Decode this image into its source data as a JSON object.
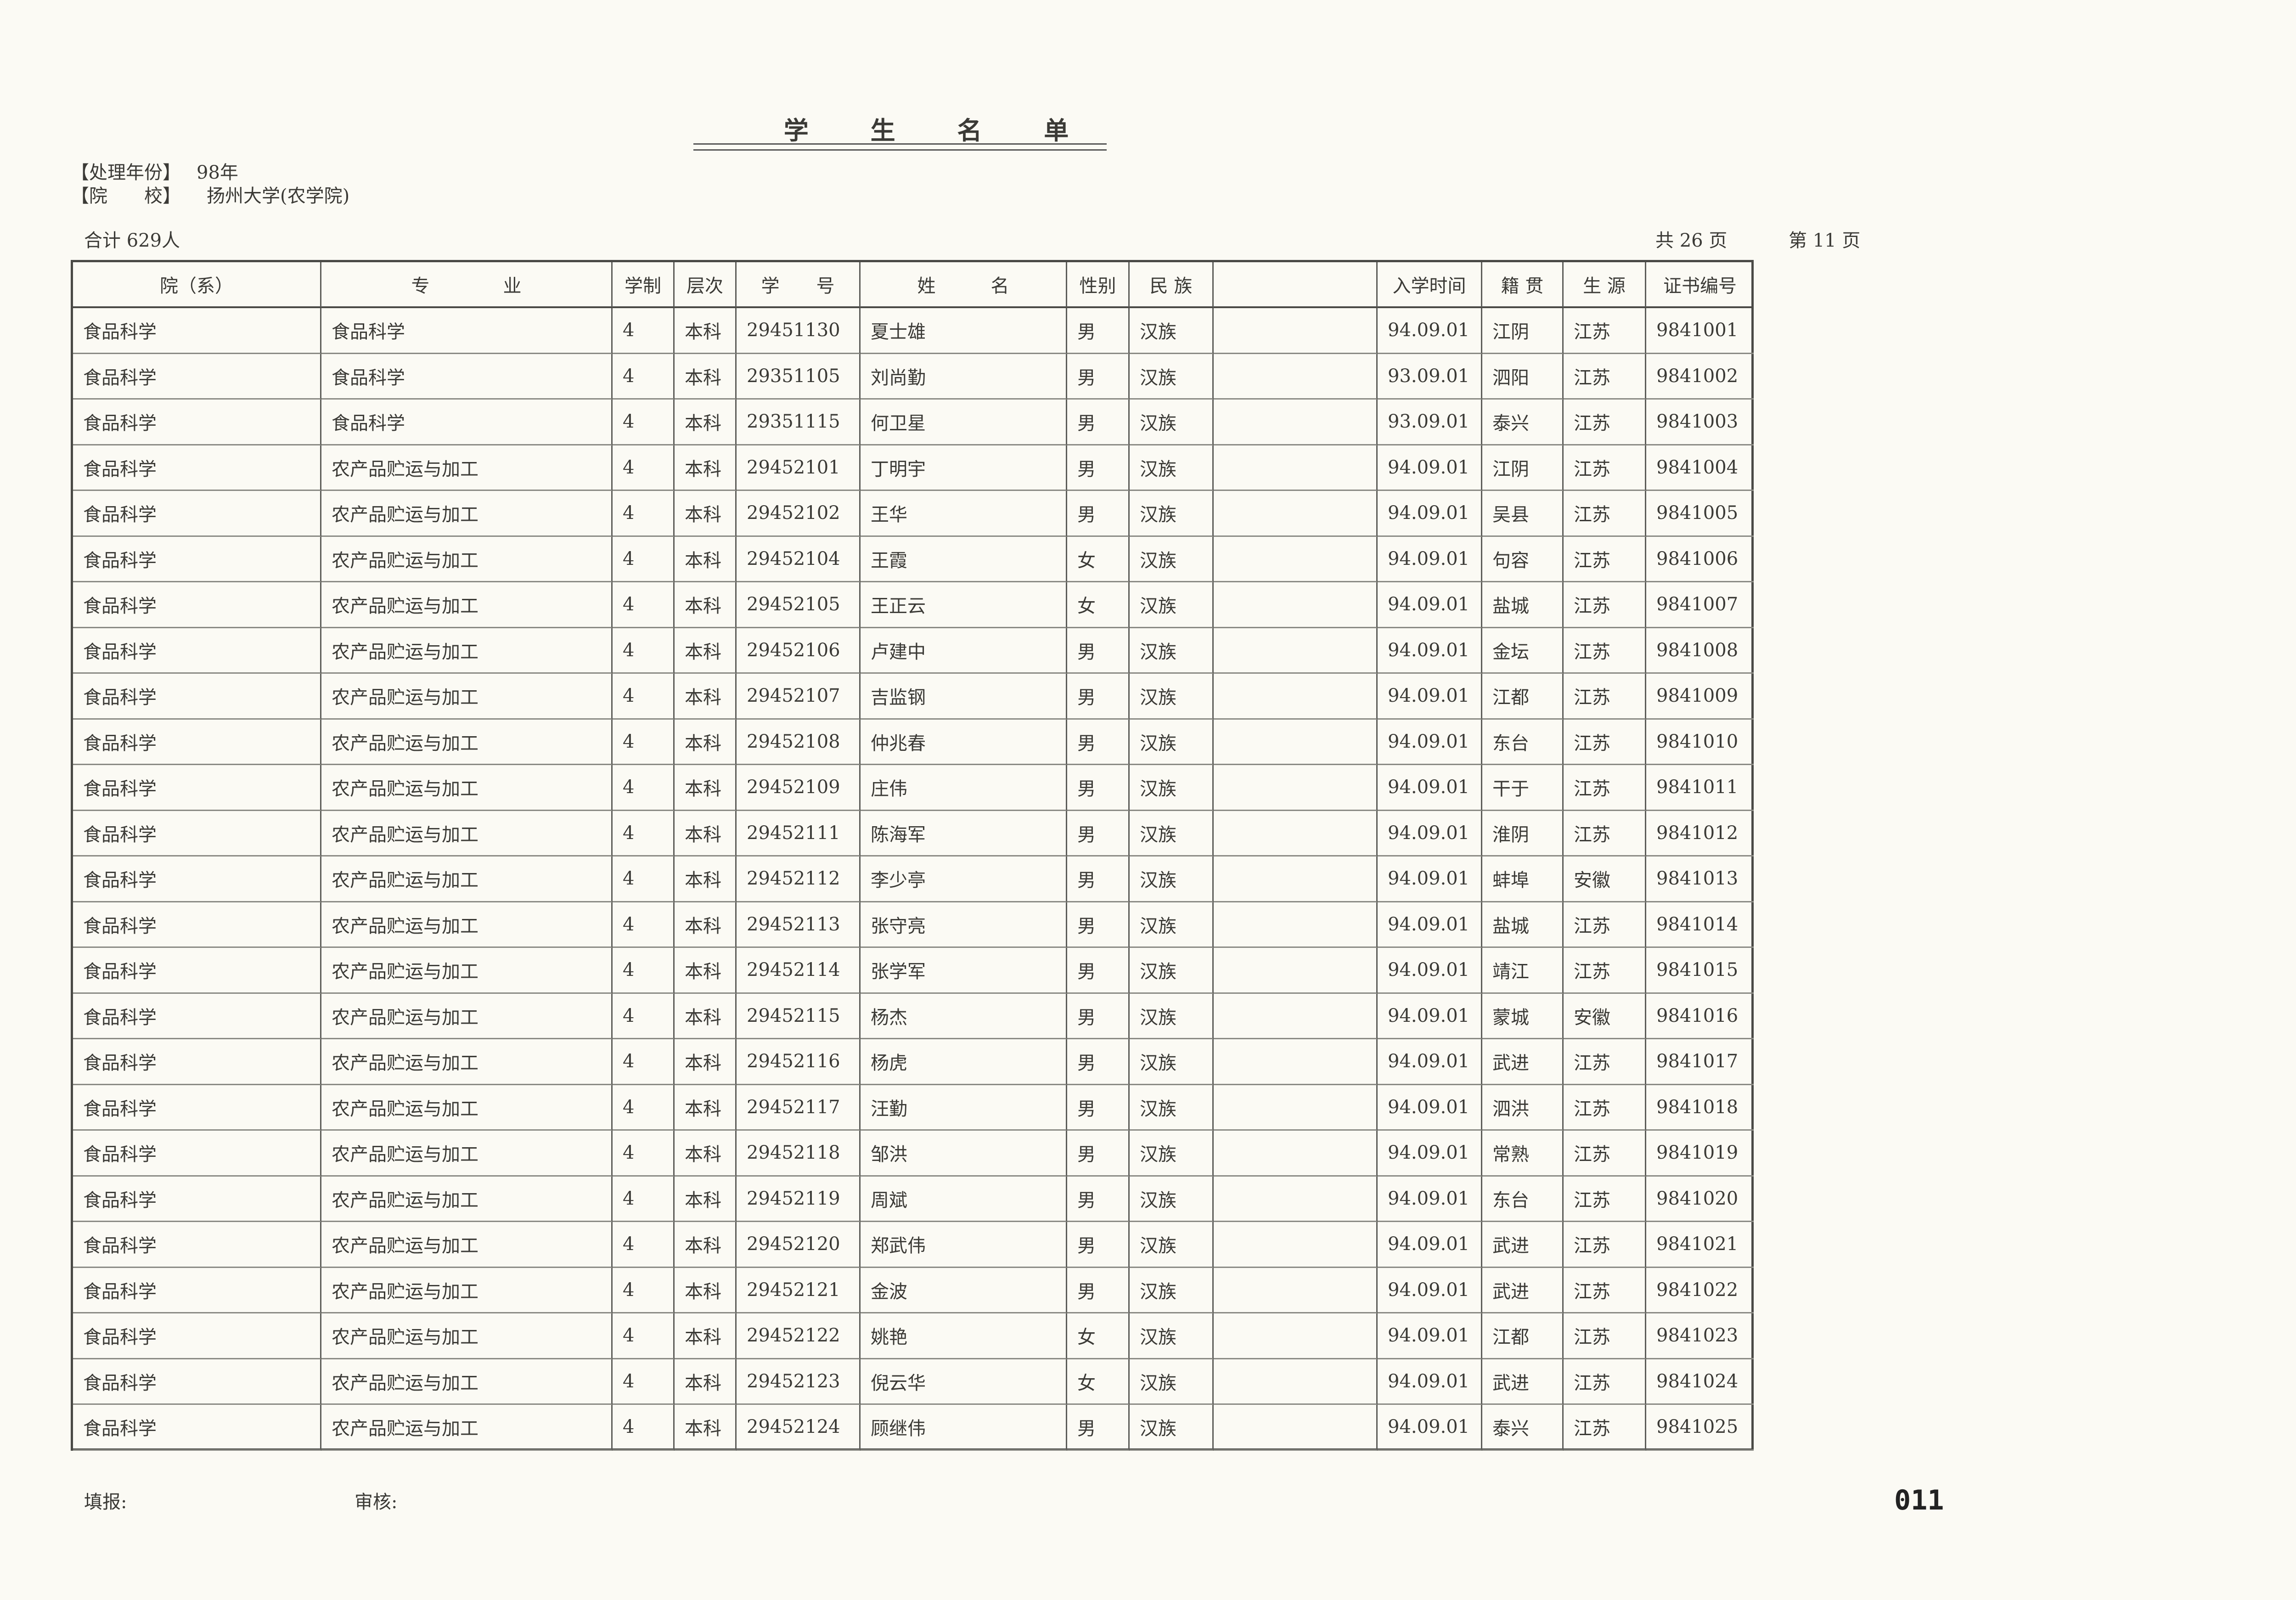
{
  "header": {
    "title": "学 生 名 单",
    "fields": [
      {
        "label": "【处理年份】",
        "value": "98年"
      },
      {
        "label": "【院　　校】",
        "value": "扬州大学(农学院)"
      }
    ],
    "total": "合计 629人",
    "pages_total": "共 26 页",
    "page_current": "第 11 页"
  },
  "table": {
    "columns": [
      "院（系）",
      "专　　　　业",
      "学制",
      "层次",
      "学　　号",
      "姓　　　名",
      "性别",
      "民 族",
      "入学时间",
      "籍 贯",
      "生 源",
      "证书编号"
    ],
    "rows": [
      [
        "食品科学",
        "食品科学",
        "4",
        "本科",
        "29451130",
        "夏士雄",
        "男",
        "汉族",
        "94.09.01",
        "江阴",
        "江苏",
        "9841001"
      ],
      [
        "食品科学",
        "食品科学",
        "4",
        "本科",
        "29351105",
        "刘尚勤",
        "男",
        "汉族",
        "93.09.01",
        "泗阳",
        "江苏",
        "9841002"
      ],
      [
        "食品科学",
        "食品科学",
        "4",
        "本科",
        "29351115",
        "何卫星",
        "男",
        "汉族",
        "93.09.01",
        "泰兴",
        "江苏",
        "9841003"
      ],
      [
        "食品科学",
        "农产品贮运与加工",
        "4",
        "本科",
        "29452101",
        "丁明宇",
        "男",
        "汉族",
        "94.09.01",
        "江阴",
        "江苏",
        "9841004"
      ],
      [
        "食品科学",
        "农产品贮运与加工",
        "4",
        "本科",
        "29452102",
        "王华",
        "男",
        "汉族",
        "94.09.01",
        "吴县",
        "江苏",
        "9841005"
      ],
      [
        "食品科学",
        "农产品贮运与加工",
        "4",
        "本科",
        "29452104",
        "王霞",
        "女",
        "汉族",
        "94.09.01",
        "句容",
        "江苏",
        "9841006"
      ],
      [
        "食品科学",
        "农产品贮运与加工",
        "4",
        "本科",
        "29452105",
        "王正云",
        "女",
        "汉族",
        "94.09.01",
        "盐城",
        "江苏",
        "9841007"
      ],
      [
        "食品科学",
        "农产品贮运与加工",
        "4",
        "本科",
        "29452106",
        "卢建中",
        "男",
        "汉族",
        "94.09.01",
        "金坛",
        "江苏",
        "9841008"
      ],
      [
        "食品科学",
        "农产品贮运与加工",
        "4",
        "本科",
        "29452107",
        "吉监钢",
        "男",
        "汉族",
        "94.09.01",
        "江都",
        "江苏",
        "9841009"
      ],
      [
        "食品科学",
        "农产品贮运与加工",
        "4",
        "本科",
        "29452108",
        "仲兆春",
        "男",
        "汉族",
        "94.09.01",
        "东台",
        "江苏",
        "9841010"
      ],
      [
        "食品科学",
        "农产品贮运与加工",
        "4",
        "本科",
        "29452109",
        "庄伟",
        "男",
        "汉族",
        "94.09.01",
        "干于",
        "江苏",
        "9841011"
      ],
      [
        "食品科学",
        "农产品贮运与加工",
        "4",
        "本科",
        "29452111",
        "陈海军",
        "男",
        "汉族",
        "94.09.01",
        "淮阴",
        "江苏",
        "9841012"
      ],
      [
        "食品科学",
        "农产品贮运与加工",
        "4",
        "本科",
        "29452112",
        "李少亭",
        "男",
        "汉族",
        "94.09.01",
        "蚌埠",
        "安徽",
        "9841013"
      ],
      [
        "食品科学",
        "农产品贮运与加工",
        "4",
        "本科",
        "29452113",
        "张守亮",
        "男",
        "汉族",
        "94.09.01",
        "盐城",
        "江苏",
        "9841014"
      ],
      [
        "食品科学",
        "农产品贮运与加工",
        "4",
        "本科",
        "29452114",
        "张学军",
        "男",
        "汉族",
        "94.09.01",
        "靖江",
        "江苏",
        "9841015"
      ],
      [
        "食品科学",
        "农产品贮运与加工",
        "4",
        "本科",
        "29452115",
        "杨杰",
        "男",
        "汉族",
        "94.09.01",
        "蒙城",
        "安徽",
        "9841016"
      ],
      [
        "食品科学",
        "农产品贮运与加工",
        "4",
        "本科",
        "29452116",
        "杨虎",
        "男",
        "汉族",
        "94.09.01",
        "武进",
        "江苏",
        "9841017"
      ],
      [
        "食品科学",
        "农产品贮运与加工",
        "4",
        "本科",
        "29452117",
        "汪勤",
        "男",
        "汉族",
        "94.09.01",
        "泗洪",
        "江苏",
        "9841018"
      ],
      [
        "食品科学",
        "农产品贮运与加工",
        "4",
        "本科",
        "29452118",
        "邹洪",
        "男",
        "汉族",
        "94.09.01",
        "常熟",
        "江苏",
        "9841019"
      ],
      [
        "食品科学",
        "农产品贮运与加工",
        "4",
        "本科",
        "29452119",
        "周斌",
        "男",
        "汉族",
        "94.09.01",
        "东台",
        "江苏",
        "9841020"
      ],
      [
        "食品科学",
        "农产品贮运与加工",
        "4",
        "本科",
        "29452120",
        "郑武伟",
        "男",
        "汉族",
        "94.09.01",
        "武进",
        "江苏",
        "9841021"
      ],
      [
        "食品科学",
        "农产品贮运与加工",
        "4",
        "本科",
        "29452121",
        "金波",
        "男",
        "汉族",
        "94.09.01",
        "武进",
        "江苏",
        "9841022"
      ],
      [
        "食品科学",
        "农产品贮运与加工",
        "4",
        "本科",
        "29452122",
        "姚艳",
        "女",
        "汉族",
        "94.09.01",
        "江都",
        "江苏",
        "9841023"
      ],
      [
        "食品科学",
        "农产品贮运与加工",
        "4",
        "本科",
        "29452123",
        "倪云华",
        "女",
        "汉族",
        "94.09.01",
        "武进",
        "江苏",
        "9841024"
      ],
      [
        "食品科学",
        "农产品贮运与加工",
        "4",
        "本科",
        "29452124",
        "顾继伟",
        "男",
        "汉族",
        "94.09.01",
        "泰兴",
        "江苏",
        "9841025"
      ]
    ]
  },
  "footer": {
    "filled_by": "填报:",
    "reviewed_by": "审核:",
    "page_number": "011"
  }
}
